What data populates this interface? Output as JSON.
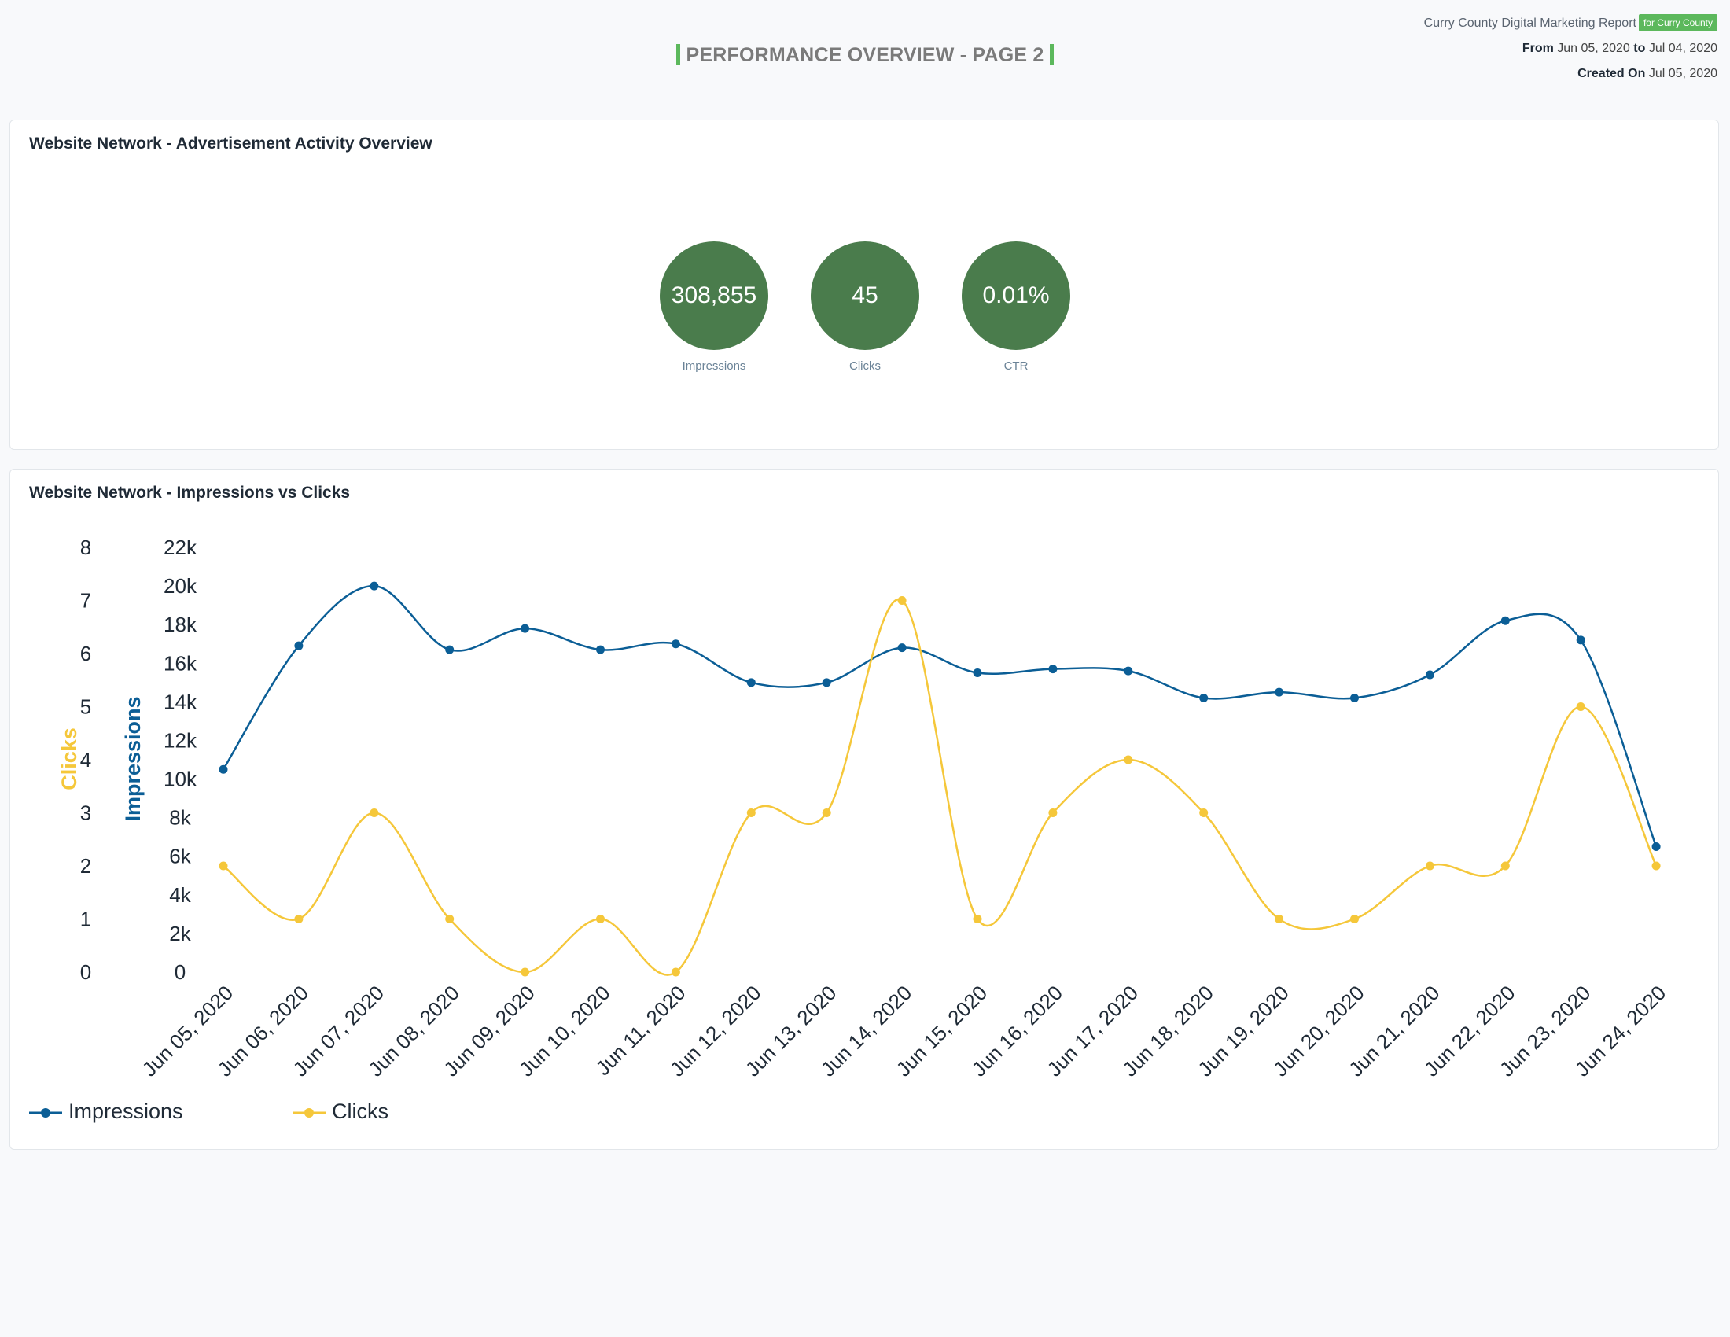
{
  "header": {
    "title": "PERFORMANCE OVERVIEW - PAGE 2",
    "report_name": "Curry County Digital Marketing Report",
    "badge": "for Curry County",
    "from_label": "From",
    "from_date": "Jun 05, 2020",
    "to_label": "to",
    "to_date": "Jul 04, 2020",
    "created_label": "Created On",
    "created_date": "Jul 05, 2020"
  },
  "overview": {
    "title": "Website Network - Advertisement Activity Overview",
    "kpis": [
      {
        "value": "308,855",
        "label": "Impressions"
      },
      {
        "value": "45",
        "label": "Clicks"
      },
      {
        "value": "0.01%",
        "label": "CTR"
      }
    ]
  },
  "colors": {
    "impressions": "#0b5e96",
    "clicks": "#f5c73a",
    "kpi_circle": "#4a7c4c",
    "accent": "#5cb85c"
  },
  "chart_data": {
    "type": "line",
    "title": "Website Network - Impressions vs Clicks",
    "x": [
      "Jun 05, 2020",
      "Jun 06, 2020",
      "Jun 07, 2020",
      "Jun 08, 2020",
      "Jun 09, 2020",
      "Jun 10, 2020",
      "Jun 11, 2020",
      "Jun 12, 2020",
      "Jun 13, 2020",
      "Jun 14, 2020",
      "Jun 15, 2020",
      "Jun 16, 2020",
      "Jun 17, 2020",
      "Jun 18, 2020",
      "Jun 19, 2020",
      "Jun 20, 2020",
      "Jun 21, 2020",
      "Jun 22, 2020",
      "Jun 23, 2020",
      "Jun 24, 2020"
    ],
    "series": [
      {
        "name": "Impressions",
        "axis": "impressions",
        "color": "#0b5e96",
        "values": [
          10500,
          16900,
          20000,
          16700,
          17800,
          16700,
          17000,
          15000,
          15000,
          16800,
          15500,
          15700,
          15600,
          14200,
          14500,
          14200,
          15400,
          18200,
          17200,
          6500
        ]
      },
      {
        "name": "Clicks",
        "axis": "clicks",
        "color": "#f5c73a",
        "values": [
          2,
          1,
          3,
          1,
          0,
          1,
          0,
          3,
          3,
          7,
          1,
          3,
          4,
          3,
          1,
          1,
          2,
          2,
          5,
          2
        ]
      }
    ],
    "axes": {
      "impressions": {
        "label": "Impressions",
        "ylim": [
          0,
          22000
        ],
        "ticks": [
          "0",
          "2k",
          "4k",
          "6k",
          "8k",
          "10k",
          "12k",
          "14k",
          "16k",
          "18k",
          "20k",
          "22k"
        ]
      },
      "clicks": {
        "label": "Clicks",
        "ylim": [
          0,
          8
        ],
        "ticks": [
          "0",
          "1",
          "2",
          "3",
          "4",
          "5",
          "6",
          "7",
          "8"
        ]
      }
    },
    "grid": false,
    "legend": "bottom-left"
  }
}
